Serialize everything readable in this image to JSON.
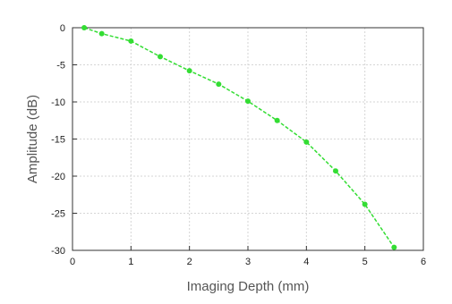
{
  "chart_data": {
    "type": "line",
    "xlabel": "Imaging Depth (mm)",
    "ylabel": "Amplitude (dB)",
    "xlim": [
      0,
      6
    ],
    "ylim": [
      -30,
      0
    ],
    "xticks": [
      0,
      1,
      2,
      3,
      4,
      5,
      6
    ],
    "yticks": [
      0,
      -5,
      -10,
      -15,
      -20,
      -25,
      -30
    ],
    "grid": true,
    "series": [
      {
        "color": "#33dd33",
        "line_style": "dashed",
        "marker": "circle",
        "x": [
          0.2,
          0.5,
          1.0,
          1.5,
          2.0,
          2.5,
          3.0,
          3.5,
          4.0,
          4.5,
          5.0,
          5.5
        ],
        "y": [
          0.0,
          -0.8,
          -1.8,
          -3.9,
          -5.8,
          -7.6,
          -9.9,
          -12.5,
          -15.4,
          -19.3,
          -23.8,
          -29.6
        ]
      }
    ]
  }
}
